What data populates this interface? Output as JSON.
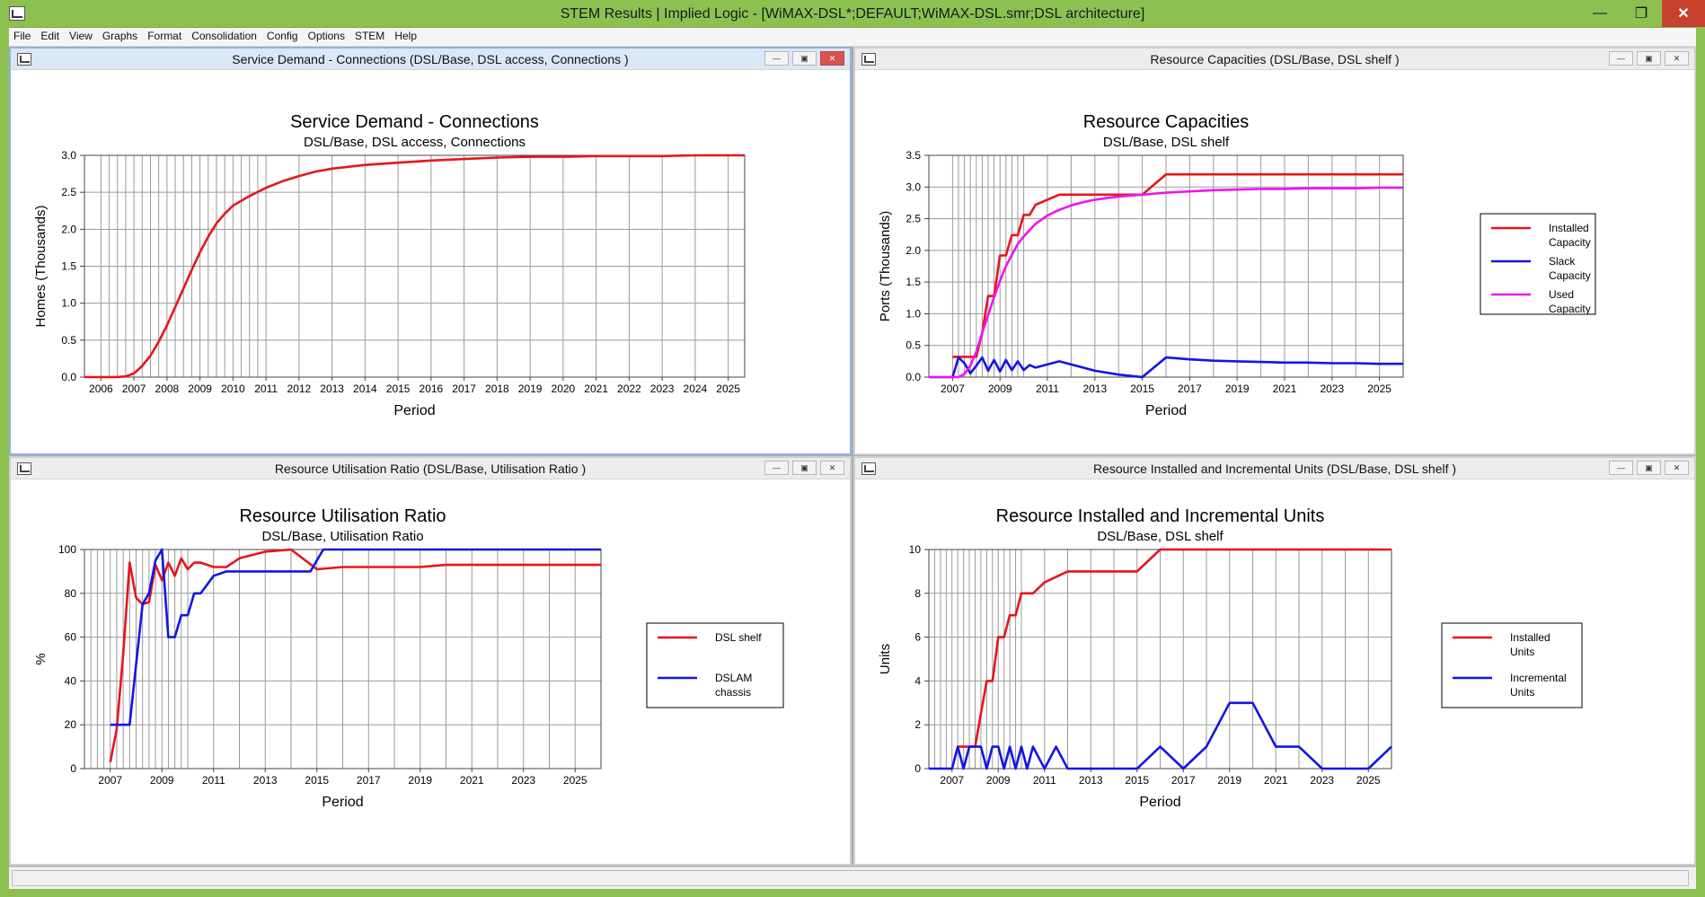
{
  "window": {
    "title": "STEM Results | Implied Logic - [WiMAX-DSL*;DEFAULT;WiMAX-DSL.smr;DSL architecture]"
  },
  "window_buttons": {
    "minimize": "—",
    "restore": "❐",
    "close": "✕"
  },
  "menu": [
    "File",
    "Edit",
    "View",
    "Graphs",
    "Format",
    "Consolidation",
    "Config",
    "Options",
    "STEM",
    "Help"
  ],
  "child_buttons": {
    "minimize": "—",
    "restore": "▣",
    "close": "✕"
  },
  "chart_data": [
    {
      "id": "c1",
      "window_title": "Service Demand - Connections (DSL/Base, DSL access, Connections )",
      "type": "line",
      "title": "Service Demand - Connections",
      "subtitle": "DSL/Base, DSL access, Connections",
      "xlabel": "Period",
      "ylabel": "Homes  (Thousands)",
      "x_range": [
        2005.5,
        2025.5
      ],
      "x_ticks": [
        "2006",
        "2007",
        "2008",
        "2009",
        "2010",
        "2011",
        "2012",
        "2013",
        "2014",
        "2015",
        "2016",
        "2017",
        "2018",
        "2019",
        "2020",
        "2021",
        "2022",
        "2023",
        "2024",
        "2025"
      ],
      "x_tick_values": [
        2006,
        2007,
        2008,
        2009,
        2010,
        2011,
        2012,
        2013,
        2014,
        2015,
        2016,
        2017,
        2018,
        2019,
        2020,
        2021,
        2022,
        2023,
        2024,
        2025
      ],
      "quarterly": [
        2006,
        2011
      ],
      "ylim": [
        0,
        3
      ],
      "y_ticks": [
        "0.0",
        "0.5",
        "1.0",
        "1.5",
        "2.0",
        "2.5",
        "3.0"
      ],
      "y_tick_values": [
        0,
        0.5,
        1,
        1.5,
        2,
        2.5,
        3
      ],
      "grid": true,
      "legend": [],
      "series": [
        {
          "color": "#e8141a",
          "x": [
            2005.5,
            2006.5,
            2006.75,
            2007,
            2007.25,
            2007.5,
            2007.75,
            2008,
            2008.25,
            2008.5,
            2008.75,
            2009,
            2009.25,
            2009.5,
            2009.75,
            2010,
            2010.5,
            2011,
            2011.5,
            2012,
            2012.5,
            2013,
            2014,
            2015,
            2016,
            2017,
            2018,
            2019,
            2020,
            2021,
            2022,
            2023,
            2024,
            2025,
            2025.5
          ],
          "values": [
            0,
            0,
            0.01,
            0.05,
            0.15,
            0.29,
            0.48,
            0.7,
            0.95,
            1.2,
            1.45,
            1.69,
            1.9,
            2.08,
            2.21,
            2.32,
            2.45,
            2.56,
            2.65,
            2.72,
            2.78,
            2.82,
            2.87,
            2.9,
            2.93,
            2.95,
            2.97,
            2.98,
            2.98,
            2.99,
            2.99,
            2.99,
            3.0,
            3.0,
            3.0
          ]
        }
      ]
    },
    {
      "id": "c2",
      "window_title": "Resource Capacities (DSL/Base, DSL shelf )",
      "type": "line",
      "title": "Resource Capacities",
      "subtitle": "DSL/Base, DSL shelf",
      "xlabel": "Period",
      "ylabel": "Ports  (Thousands)",
      "x_range": [
        2006,
        2026
      ],
      "x_ticks": [
        "2007",
        "2009",
        "2011",
        "2013",
        "2015",
        "2017",
        "2019",
        "2021",
        "2023",
        "2025"
      ],
      "x_tick_values": [
        2007,
        2009,
        2011,
        2013,
        2015,
        2017,
        2019,
        2021,
        2023,
        2025
      ],
      "quarterly": [
        2007,
        2010
      ],
      "ylim": [
        0,
        3.5
      ],
      "y_ticks": [
        "0.0",
        "0.5",
        "1.0",
        "1.5",
        "2.0",
        "2.5",
        "3.0",
        "3.5"
      ],
      "y_tick_values": [
        0,
        0.5,
        1,
        1.5,
        2,
        2.5,
        3,
        3.5
      ],
      "grid": true,
      "legend": [
        {
          "line1": "Installed",
          "line2": "Capacity",
          "color": "#e8141a"
        },
        {
          "line1": "Slack",
          "line2": "Capacity",
          "color": "#1414e6"
        },
        {
          "line1": "Used",
          "line2": "Capacity",
          "color": "#f012f0"
        }
      ],
      "series": [
        {
          "color": "#e8141a",
          "x": [
            2007,
            2008,
            2008.25,
            2008.5,
            2008.75,
            2009,
            2009.25,
            2009.5,
            2009.75,
            2010,
            2010.25,
            2010.5,
            2011.5,
            2012,
            2013,
            2014,
            2015,
            2016,
            2017,
            2018,
            2019,
            2020,
            2021,
            2022,
            2023,
            2024,
            2025,
            2026
          ],
          "values": [
            0.32,
            0.32,
            0.7,
            1.28,
            1.28,
            1.92,
            1.92,
            2.24,
            2.24,
            2.56,
            2.56,
            2.72,
            2.88,
            2.88,
            2.88,
            2.88,
            2.88,
            3.2,
            3.2,
            3.2,
            3.2,
            3.2,
            3.2,
            3.2,
            3.2,
            3.2,
            3.2,
            3.2
          ]
        },
        {
          "color": "#1414e6",
          "x": [
            2006,
            2007,
            2007.25,
            2007.5,
            2007.75,
            2008,
            2008.25,
            2008.5,
            2008.75,
            2009,
            2009.25,
            2009.5,
            2009.75,
            2010,
            2010.25,
            2010.5,
            2011,
            2011.5,
            2012,
            2013,
            2014,
            2015,
            2016,
            2017,
            2018,
            2019,
            2020,
            2021,
            2022,
            2023,
            2024,
            2025,
            2026
          ],
          "values": [
            0,
            0,
            0.31,
            0.22,
            0.06,
            0.18,
            0.31,
            0.1,
            0.27,
            0.09,
            0.27,
            0.11,
            0.25,
            0.11,
            0.19,
            0.15,
            0.2,
            0.25,
            0.2,
            0.1,
            0.04,
            0,
            0.31,
            0.28,
            0.26,
            0.25,
            0.24,
            0.23,
            0.23,
            0.22,
            0.22,
            0.21,
            0.21
          ]
        },
        {
          "color": "#f012f0",
          "x": [
            2006,
            2007.25,
            2007.5,
            2007.75,
            2008,
            2008.25,
            2008.5,
            2008.75,
            2009,
            2009.25,
            2009.5,
            2009.75,
            2010,
            2010.5,
            2011,
            2011.5,
            2012,
            2012.5,
            2013,
            2014,
            2015,
            2016,
            2017,
            2018,
            2019,
            2020,
            2021,
            2022,
            2023,
            2024,
            2025,
            2026
          ],
          "values": [
            0,
            0,
            0.05,
            0.18,
            0.4,
            0.7,
            0.98,
            1.26,
            1.52,
            1.75,
            1.93,
            2.1,
            2.22,
            2.42,
            2.55,
            2.64,
            2.71,
            2.76,
            2.8,
            2.85,
            2.88,
            2.91,
            2.93,
            2.95,
            2.96,
            2.97,
            2.97,
            2.98,
            2.98,
            2.98,
            2.99,
            2.99
          ]
        }
      ]
    },
    {
      "id": "c3",
      "window_title": "Resource Utilisation Ratio (DSL/Base, Utilisation Ratio )",
      "type": "line",
      "title": "Resource Utilisation Ratio",
      "subtitle": "DSL/Base, Utilisation Ratio",
      "xlabel": "Period",
      "ylabel": "%",
      "x_range": [
        2006,
        2026
      ],
      "x_ticks": [
        "2007",
        "2009",
        "2011",
        "2013",
        "2015",
        "2017",
        "2019",
        "2021",
        "2023",
        "2025"
      ],
      "x_tick_values": [
        2007,
        2009,
        2011,
        2013,
        2015,
        2017,
        2019,
        2021,
        2023,
        2025
      ],
      "quarterly": [
        2006,
        2010
      ],
      "ylim": [
        0,
        100
      ],
      "y_ticks": [
        "0",
        "20",
        "40",
        "60",
        "80",
        "100"
      ],
      "y_tick_values": [
        0,
        20,
        40,
        60,
        80,
        100
      ],
      "grid": true,
      "legend": [
        {
          "line1": "DSL shelf",
          "line2": "",
          "color": "#e8141a"
        },
        {
          "line1": "DSLAM",
          "line2": "chassis",
          "color": "#1414e6"
        }
      ],
      "series": [
        {
          "color": "#e8141a",
          "x": [
            2007,
            2007.25,
            2007.5,
            2007.75,
            2008,
            2008.25,
            2008.5,
            2008.75,
            2009,
            2009.25,
            2009.5,
            2009.75,
            2010,
            2010.25,
            2010.5,
            2011,
            2011.5,
            2012,
            2013,
            2014,
            2015,
            2016,
            2017,
            2018,
            2019,
            2020,
            2021,
            2022,
            2023,
            2024,
            2025,
            2026
          ],
          "values": [
            3,
            18,
            52,
            94,
            78,
            75,
            76,
            93,
            86,
            94,
            88,
            96,
            91,
            94,
            94,
            92,
            92,
            96,
            99,
            100,
            91,
            92,
            92,
            92,
            92,
            93,
            93,
            93,
            93,
            93,
            93,
            93
          ]
        },
        {
          "color": "#1414e6",
          "x": [
            2007,
            2007.5,
            2007.75,
            2008.25,
            2008.5,
            2008.75,
            2009,
            2009.25,
            2009.5,
            2009.75,
            2010,
            2010.25,
            2010.5,
            2011,
            2011.5,
            2012,
            2013,
            2014,
            2014.75,
            2015.25,
            2016,
            2017,
            2018,
            2019,
            2020,
            2021,
            2022,
            2023,
            2024,
            2025,
            2026
          ],
          "values": [
            20,
            20,
            20,
            75,
            80,
            95,
            100,
            60,
            60,
            70,
            70,
            80,
            80,
            88,
            90,
            90,
            90,
            90,
            90,
            100,
            100,
            100,
            100,
            100,
            100,
            100,
            100,
            100,
            100,
            100,
            100
          ]
        }
      ]
    },
    {
      "id": "c4",
      "window_title": "Resource Installed and Incremental Units (DSL/Base, DSL shelf )",
      "type": "line",
      "title": "Resource Installed and Incremental Units",
      "subtitle": "DSL/Base, DSL shelf",
      "xlabel": "Period",
      "ylabel": "Units",
      "x_range": [
        2006,
        2026
      ],
      "x_ticks": [
        "2007",
        "2009",
        "2011",
        "2013",
        "2015",
        "2017",
        "2019",
        "2021",
        "2023",
        "2025"
      ],
      "x_tick_values": [
        2007,
        2009,
        2011,
        2013,
        2015,
        2017,
        2019,
        2021,
        2023,
        2025
      ],
      "quarterly": [
        2006,
        2010
      ],
      "ylim": [
        0,
        10
      ],
      "y_ticks": [
        "0",
        "2",
        "4",
        "6",
        "8",
        "10"
      ],
      "y_tick_values": [
        0,
        2,
        4,
        6,
        8,
        10
      ],
      "grid": true,
      "legend": [
        {
          "line1": "Installed",
          "line2": "Units",
          "color": "#e8141a"
        },
        {
          "line1": "Incremental",
          "line2": "Units",
          "color": "#1414e6"
        }
      ],
      "series": [
        {
          "color": "#e8141a",
          "x": [
            2007.25,
            2008,
            2008.25,
            2008.5,
            2008.75,
            2009,
            2009.25,
            2009.5,
            2009.75,
            2010,
            2010.25,
            2010.5,
            2011,
            2012,
            2013,
            2014,
            2015,
            2016,
            2017,
            2018,
            2019,
            2020,
            2021,
            2022,
            2023,
            2024,
            2025,
            2026
          ],
          "values": [
            1,
            1,
            2.5,
            4,
            4,
            6,
            6,
            7,
            7,
            8,
            8,
            8,
            8.5,
            9,
            9,
            9,
            9,
            10,
            10,
            10,
            10,
            10,
            10,
            10,
            10,
            10,
            10,
            10
          ]
        },
        {
          "color": "#1414e6",
          "x": [
            2006,
            2007,
            2007.25,
            2007.5,
            2007.75,
            2008,
            2008.25,
            2008.5,
            2008.75,
            2009,
            2009.25,
            2009.5,
            2009.75,
            2010,
            2010.25,
            2010.5,
            2011,
            2011.5,
            2012,
            2013,
            2014,
            2015,
            2016,
            2017,
            2018,
            2019,
            2020,
            2021,
            2022,
            2023,
            2024,
            2025,
            2026
          ],
          "values": [
            0,
            0,
            1,
            0,
            1,
            1,
            1,
            0,
            1,
            1,
            0,
            1,
            0,
            1,
            0,
            1,
            0,
            1,
            0,
            0,
            0,
            0,
            1,
            0,
            1,
            3,
            3,
            1,
            1,
            0,
            0,
            0,
            1
          ]
        }
      ]
    }
  ]
}
